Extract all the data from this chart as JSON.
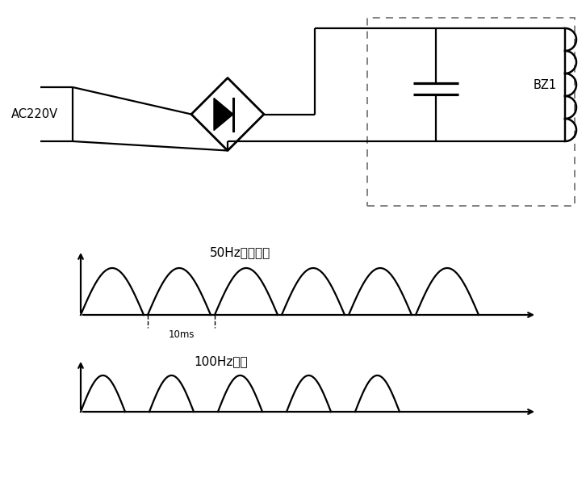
{
  "bg_color": "#ffffff",
  "line_color": "#000000",
  "ac_label": "AC220V",
  "bz1_label": "BZ1",
  "wave1_label": "50Hz整流波形",
  "wave2_label": "100Hz脉动",
  "time_label": "10ms",
  "fig_width": 7.26,
  "fig_height": 5.97,
  "dpi": 100
}
